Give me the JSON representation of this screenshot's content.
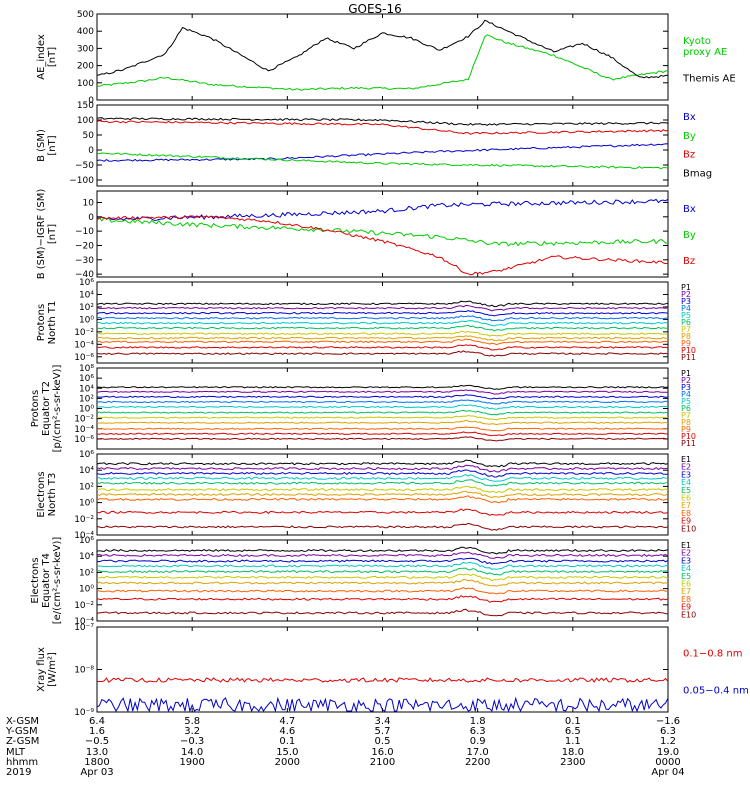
{
  "title": "GOES-16",
  "colors": {
    "black": "#000000",
    "green": "#00cc00",
    "blue": "#0000cc",
    "red": "#dd0000"
  },
  "chart_data": [
    {
      "type": "line",
      "ylabel": [
        "AE_index",
        "[nT]"
      ],
      "ylim": [
        0,
        500
      ],
      "ticks": [
        {
          "v": 0,
          "label": "0"
        },
        {
          "v": 100,
          "label": "100"
        },
        {
          "v": 200,
          "label": "200"
        },
        {
          "v": 300,
          "label": "300"
        },
        {
          "v": 400,
          "label": "400"
        },
        {
          "v": 500,
          "label": "500"
        }
      ],
      "series": [
        {
          "name": "Kyoto proxy AE",
          "legend": [
            "Kyoto",
            "proxy AE"
          ],
          "color": "green",
          "smooth": true,
          "t": [
            0,
            0.08,
            0.12,
            0.2,
            0.3,
            0.35,
            0.45,
            0.55,
            0.65,
            0.68,
            0.72,
            0.8,
            0.9,
            1.0
          ],
          "values": [
            80,
            110,
            130,
            90,
            70,
            60,
            70,
            65,
            120,
            380,
            330,
            260,
            120,
            170
          ]
        },
        {
          "name": "Themis AE",
          "legend": [
            "Themis AE"
          ],
          "color": "black",
          "smooth": true,
          "t": [
            0,
            0.05,
            0.12,
            0.15,
            0.2,
            0.3,
            0.35,
            0.4,
            0.45,
            0.5,
            0.55,
            0.6,
            0.65,
            0.68,
            0.72,
            0.8,
            0.85,
            0.9,
            0.95,
            1.0
          ],
          "values": [
            140,
            180,
            270,
            420,
            360,
            170,
            250,
            360,
            300,
            390,
            360,
            290,
            370,
            460,
            400,
            280,
            330,
            250,
            130,
            140
          ]
        }
      ]
    },
    {
      "type": "line",
      "ylabel": [
        "B (SM)",
        "[nT]"
      ],
      "ylim": [
        -120,
        150
      ],
      "ticks": [
        {
          "v": -100,
          "label": "−100"
        },
        {
          "v": -50,
          "label": "−50"
        },
        {
          "v": 0,
          "label": "0"
        },
        {
          "v": 50,
          "label": "50"
        },
        {
          "v": 100,
          "label": "100"
        },
        {
          "v": 150,
          "label": "150"
        }
      ],
      "series": [
        {
          "name": "Bx",
          "legend": [
            "Bx"
          ],
          "color": "blue",
          "t": [
            0,
            0.3,
            0.6,
            1.0
          ],
          "values": [
            -35,
            -30,
            -5,
            20
          ]
        },
        {
          "name": "By",
          "legend": [
            "By"
          ],
          "color": "green",
          "t": [
            0,
            0.5,
            1.0
          ],
          "values": [
            -10,
            -45,
            -60
          ]
        },
        {
          "name": "Bz",
          "legend": [
            "Bz"
          ],
          "color": "red",
          "t": [
            0,
            0.5,
            0.65,
            1.0
          ],
          "values": [
            95,
            85,
            55,
            65
          ]
        },
        {
          "name": "Bmag",
          "legend": [
            "Bmag"
          ],
          "color": "black",
          "t": [
            0,
            0.5,
            0.65,
            1.0
          ],
          "values": [
            105,
            100,
            85,
            90
          ]
        }
      ]
    },
    {
      "type": "line",
      "ylabel": [
        "B (SM)−IGRF (SM)",
        "[nT]"
      ],
      "ylim": [
        -42,
        18
      ],
      "ticks": [
        {
          "v": -40,
          "label": "−40"
        },
        {
          "v": -30,
          "label": "−30"
        },
        {
          "v": -20,
          "label": "−20"
        },
        {
          "v": -10,
          "label": "−10"
        },
        {
          "v": 0,
          "label": "0"
        },
        {
          "v": 10,
          "label": "10"
        }
      ],
      "series": [
        {
          "name": "Bx",
          "legend": [
            "Bx"
          ],
          "color": "blue",
          "noise": 1.5,
          "t": [
            0,
            0.3,
            0.5,
            0.6,
            0.7,
            1.0
          ],
          "values": [
            -2,
            1,
            4,
            8,
            9,
            11
          ]
        },
        {
          "name": "By",
          "legend": [
            "By"
          ],
          "color": "green",
          "noise": 1.5,
          "t": [
            0,
            0.2,
            0.4,
            0.6,
            0.7,
            1.0
          ],
          "values": [
            -2,
            -6,
            -9,
            -14,
            -19,
            -17
          ]
        },
        {
          "name": "Bz",
          "legend": [
            "Bz"
          ],
          "color": "red",
          "noise": 1.0,
          "smooth": true,
          "t": [
            0,
            0.2,
            0.3,
            0.4,
            0.5,
            0.6,
            0.65,
            0.7,
            0.8,
            1.0
          ],
          "values": [
            -1,
            0,
            -3,
            -9,
            -17,
            -28,
            -40,
            -38,
            -28,
            -32
          ]
        }
      ]
    },
    {
      "type": "line",
      "log": true,
      "ylabel": [
        "Protons",
        "North T1"
      ],
      "ylim": [
        -7,
        6
      ],
      "ticks": [
        {
          "v": -6,
          "label": "10⁻⁶"
        },
        {
          "v": -4,
          "label": "10⁻⁴"
        },
        {
          "v": -2,
          "label": "10⁻²"
        },
        {
          "v": 0,
          "label": "10⁰"
        },
        {
          "v": 2,
          "label": "10²"
        },
        {
          "v": 4,
          "label": "10⁴"
        },
        {
          "v": 6,
          "label": "10⁶"
        }
      ],
      "series": [
        {
          "name": "P1",
          "color": "#000000",
          "level": 2.5
        },
        {
          "name": "P2",
          "color": "#7a00a0",
          "level": 1.8
        },
        {
          "name": "P3",
          "color": "#0000cc",
          "level": 1.0
        },
        {
          "name": "P4",
          "color": "#0070ff",
          "level": 0.2
        },
        {
          "name": "P5",
          "color": "#00c8c8",
          "level": -0.6
        },
        {
          "name": "P6",
          "color": "#00c060",
          "level": -1.4
        },
        {
          "name": "P7",
          "color": "#c8c800",
          "level": -2.3
        },
        {
          "name": "P8",
          "color": "#e0a000",
          "level": -3.0
        },
        {
          "name": "P9",
          "color": "#ff6000",
          "level": -3.6
        },
        {
          "name": "P10",
          "color": "#dd0000",
          "level": -4.5
        },
        {
          "name": "P11",
          "color": "#880000",
          "level": -5.5
        }
      ]
    },
    {
      "type": "line",
      "log": true,
      "ylabel": [
        "Protons",
        "Equator T2",
        "[p/(cm²-s-sr-keV)]"
      ],
      "ylim": [
        -8,
        8
      ],
      "ticks": [
        {
          "v": -6,
          "label": "10⁻⁶"
        },
        {
          "v": -4,
          "label": "10⁻⁴"
        },
        {
          "v": -2,
          "label": "10⁻²"
        },
        {
          "v": 0,
          "label": "10⁰"
        },
        {
          "v": 2,
          "label": "10²"
        },
        {
          "v": 4,
          "label": "10⁴"
        },
        {
          "v": 6,
          "label": "10⁶"
        },
        {
          "v": 8,
          "label": "10⁸"
        }
      ],
      "series": [
        {
          "name": "P1",
          "color": "#000000",
          "level": 4.2
        },
        {
          "name": "P2",
          "color": "#7a00a0",
          "level": 3.3
        },
        {
          "name": "P3",
          "color": "#0000cc",
          "level": 2.3
        },
        {
          "name": "P4",
          "color": "#0070ff",
          "level": 1.3
        },
        {
          "name": "P5",
          "color": "#00c8c8",
          "level": 0.3
        },
        {
          "name": "P6",
          "color": "#00c060",
          "level": -0.8
        },
        {
          "name": "P7",
          "color": "#c8c800",
          "level": -1.8
        },
        {
          "name": "P8",
          "color": "#e0a000",
          "level": -2.8
        },
        {
          "name": "P9",
          "color": "#ff6000",
          "level": -4.0
        },
        {
          "name": "P10",
          "color": "#dd0000",
          "level": -5.0
        },
        {
          "name": "P11",
          "color": "#880000",
          "level": -6.0
        }
      ]
    },
    {
      "type": "line",
      "log": true,
      "ylabel": [
        "Electrons",
        "North T3"
      ],
      "ylim": [
        -4,
        6
      ],
      "ticks": [
        {
          "v": -4,
          "label": "10⁻⁴"
        },
        {
          "v": -2,
          "label": "10⁻²"
        },
        {
          "v": 0,
          "label": "10⁰"
        },
        {
          "v": 2,
          "label": "10²"
        },
        {
          "v": 4,
          "label": "10⁴"
        },
        {
          "v": 6,
          "label": "10⁶"
        }
      ],
      "series": [
        {
          "name": "E1",
          "color": "#000000",
          "level": 4.8
        },
        {
          "name": "E2",
          "color": "#7a00a0",
          "level": 4.2
        },
        {
          "name": "E3",
          "color": "#0000cc",
          "level": 3.6
        },
        {
          "name": "E4",
          "color": "#00c8c8",
          "level": 3.0
        },
        {
          "name": "E5",
          "color": "#00c060",
          "level": 2.4
        },
        {
          "name": "E6",
          "color": "#c8c800",
          "level": 1.6
        },
        {
          "name": "E7",
          "color": "#e0a000",
          "level": 1.0
        },
        {
          "name": "E8",
          "color": "#ff6000",
          "level": 0.4
        },
        {
          "name": "E9",
          "color": "#dd0000",
          "level": -1.2
        },
        {
          "name": "E10",
          "color": "#880000",
          "level": -3.0
        }
      ]
    },
    {
      "type": "line",
      "log": true,
      "ylabel": [
        "Electrons",
        "Equator T4",
        "[e/(cm²-s-sr-keV)]"
      ],
      "ylim": [
        -4,
        6
      ],
      "ticks": [
        {
          "v": -4,
          "label": "10⁻⁴"
        },
        {
          "v": -2,
          "label": "10⁻²"
        },
        {
          "v": 0,
          "label": "10⁰"
        },
        {
          "v": 2,
          "label": "10²"
        },
        {
          "v": 4,
          "label": "10⁴"
        },
        {
          "v": 6,
          "label": "10⁶"
        }
      ],
      "series": [
        {
          "name": "E1",
          "color": "#000000",
          "level": 4.7
        },
        {
          "name": "E2",
          "color": "#7a00a0",
          "level": 4.1
        },
        {
          "name": "E3",
          "color": "#0000cc",
          "level": 3.4
        },
        {
          "name": "E4",
          "color": "#00c8c8",
          "level": 2.8
        },
        {
          "name": "E5",
          "color": "#00c060",
          "level": 2.1
        },
        {
          "name": "E6",
          "color": "#c8c800",
          "level": 1.4
        },
        {
          "name": "E7",
          "color": "#e0a000",
          "level": 0.7
        },
        {
          "name": "E8",
          "color": "#ff6000",
          "level": -0.3
        },
        {
          "name": "E9",
          "color": "#dd0000",
          "level": -1.3
        },
        {
          "name": "E10",
          "color": "#880000",
          "level": -3.0
        }
      ]
    },
    {
      "type": "line",
      "log": true,
      "ylabel": [
        "Xray flux",
        "[W/m²]"
      ],
      "ylim": [
        -9,
        -7
      ],
      "ticks": [
        {
          "v": -9,
          "label": "10⁻⁹"
        },
        {
          "v": -8,
          "label": "10⁻⁸"
        },
        {
          "v": -7,
          "label": "10⁻⁷"
        }
      ],
      "series": [
        {
          "name": "0.1−0.8 nm",
          "legend": [
            "0.1−0.8 nm"
          ],
          "color": "red",
          "level": -8.25,
          "noise": 0.05
        },
        {
          "name": "0.05−0.4 nm",
          "legend": [
            "0.05−0.4 nm"
          ],
          "color": "blue",
          "level": -8.85,
          "noise": 0.18
        }
      ]
    }
  ],
  "xaxis": {
    "row_labels": [
      "X-GSM",
      "Y-GSM",
      "Z-GSM",
      "MLT",
      "hhmm",
      "2019"
    ],
    "columns": [
      {
        "values": [
          "6.4",
          "1.6",
          "−0.5",
          "13.0",
          "1800",
          "Apr 03"
        ]
      },
      {
        "values": [
          "5.8",
          "3.2",
          "−0.3",
          "14.0",
          "1900",
          ""
        ]
      },
      {
        "values": [
          "4.7",
          "4.6",
          "0.1",
          "15.0",
          "2000",
          ""
        ]
      },
      {
        "values": [
          "3.4",
          "5.7",
          "0.5",
          "16.0",
          "2100",
          ""
        ]
      },
      {
        "values": [
          "1.8",
          "6.3",
          "0.9",
          "17.0",
          "2200",
          ""
        ]
      },
      {
        "values": [
          "0.1",
          "6.5",
          "1.1",
          "18.0",
          "2300",
          ""
        ]
      },
      {
        "values": [
          "−1.6",
          "6.3",
          "1.2",
          "19.0",
          "0000",
          "Apr 04"
        ]
      }
    ]
  }
}
